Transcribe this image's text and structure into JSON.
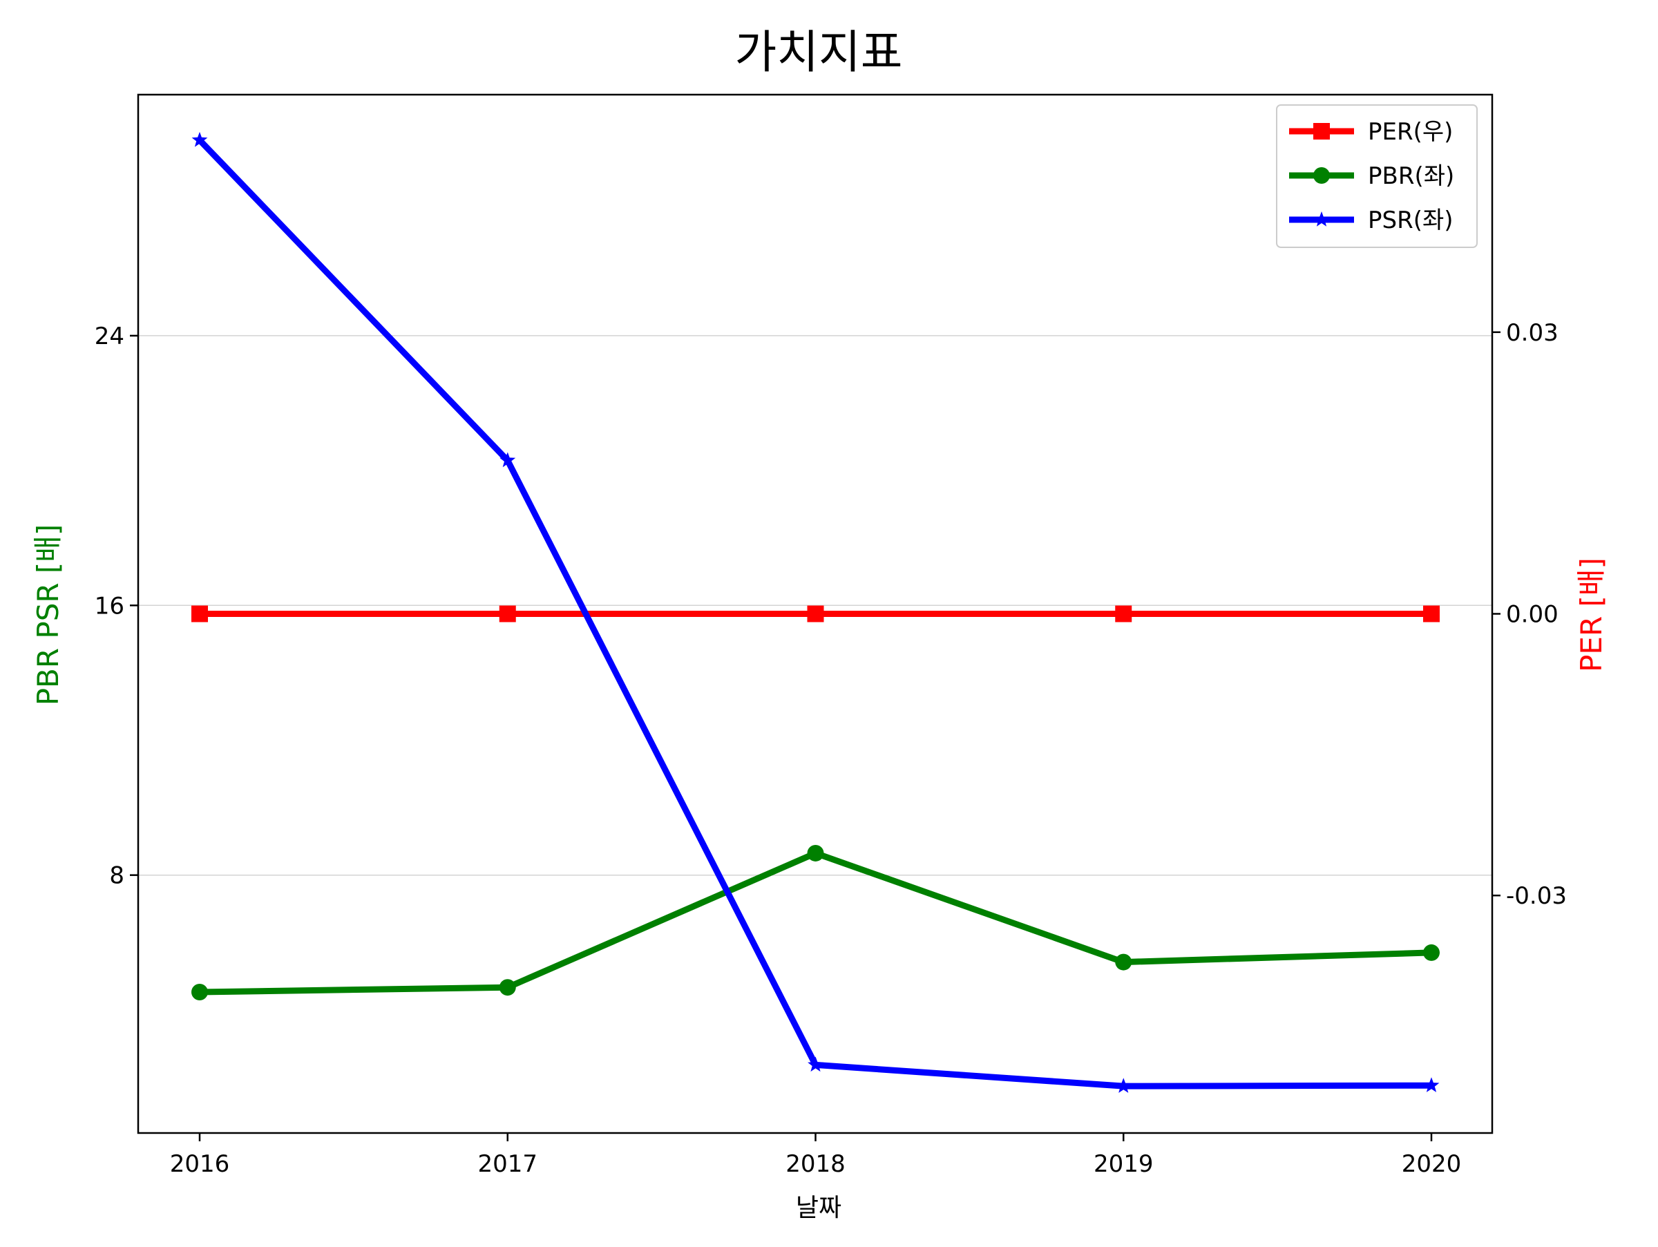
{
  "chart_data": {
    "type": "line",
    "title": "가치지표",
    "xlabel": "날짜",
    "ylabel_left": "PBR PSR [배]",
    "ylabel_right": "PER [배]",
    "categories": [
      "2016",
      "2017",
      "2018",
      "2019",
      "2020"
    ],
    "left_axis": {
      "ticks": [
        8,
        16,
        24
      ],
      "tick_labels": [
        "8",
        "16",
        "24"
      ],
      "ylim": [
        0.35,
        31.15
      ],
      "grid": true
    },
    "right_axis": {
      "ticks": [
        -0.03,
        0.0,
        0.03
      ],
      "tick_labels": [
        "-0.03",
        "0.00",
        "0.03"
      ],
      "ylim": [
        -0.0553,
        0.0553
      ],
      "grid": false
    },
    "series": [
      {
        "name": "PER(우)",
        "axis": "right",
        "color": "#ff0000",
        "marker": "square",
        "values": [
          0,
          0,
          0,
          0,
          0
        ]
      },
      {
        "name": "PBR(좌)",
        "axis": "left",
        "color": "#008000",
        "marker": "circle",
        "values": [
          4.53,
          4.67,
          8.65,
          5.42,
          5.7
        ]
      },
      {
        "name": "PSR(좌)",
        "axis": "left",
        "color": "#0000ff",
        "marker": "star",
        "values": [
          29.8,
          20.3,
          2.37,
          1.74,
          1.76
        ]
      }
    ],
    "legend_position": "top-right"
  }
}
